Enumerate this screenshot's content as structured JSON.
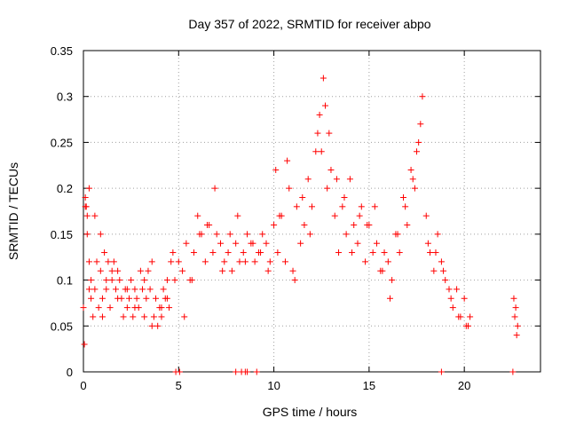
{
  "chart_data": {
    "type": "scatter",
    "title": "Day 357 of 2022, SRMTID for receiver abpo",
    "xlabel": "GPS time / hours",
    "ylabel": "SRMTID / TECUs",
    "xlim": [
      0,
      24
    ],
    "ylim": [
      0,
      0.35
    ],
    "xticks": [
      0,
      5,
      10,
      15,
      20
    ],
    "yticks": [
      0,
      0.05,
      0.1,
      0.15,
      0.2,
      0.25,
      0.3,
      0.35
    ],
    "xtick_labels": [
      "0",
      "5",
      "10",
      "15",
      "20"
    ],
    "ytick_labels": [
      "0",
      "0.05",
      "0.1",
      "0.15",
      "0.2",
      "0.25",
      "0.3",
      "0.35"
    ],
    "grid": true,
    "marker": "+",
    "series": [
      {
        "name": "SRMTID",
        "color": "#ff0000",
        "x": [
          0.0,
          0.1,
          0.1,
          0.2,
          0.2,
          0.3,
          0.3,
          0.4,
          0.4,
          0.5,
          0.6,
          0.7,
          0.8,
          0.9,
          1.0,
          1.0,
          1.1,
          1.2,
          1.3,
          1.4,
          1.5,
          1.6,
          1.7,
          1.8,
          1.9,
          2.0,
          2.1,
          2.2,
          2.3,
          2.4,
          2.5,
          2.6,
          2.7,
          2.8,
          2.9,
          3.0,
          3.1,
          3.2,
          3.3,
          3.4,
          3.5,
          3.6,
          3.7,
          3.8,
          3.9,
          4.0,
          4.1,
          4.2,
          4.3,
          4.4,
          4.5,
          4.6,
          4.7,
          4.8,
          5.0,
          5.2,
          5.4,
          5.6,
          5.8,
          6.0,
          6.2,
          6.4,
          6.6,
          6.8,
          7.0,
          7.2,
          7.4,
          7.6,
          7.8,
          8.0,
          8.2,
          8.4,
          8.6,
          8.8,
          9.0,
          9.2,
          9.4,
          9.6,
          9.8,
          10.0,
          10.1,
          10.2,
          10.4,
          10.6,
          10.8,
          11.0,
          11.2,
          11.4,
          11.6,
          11.8,
          12.0,
          12.2,
          12.3,
          12.4,
          12.6,
          12.7,
          12.8,
          13.0,
          13.2,
          13.4,
          13.6,
          13.8,
          14.0,
          14.2,
          14.4,
          14.6,
          14.8,
          15.0,
          15.2,
          15.4,
          15.6,
          15.8,
          16.0,
          16.2,
          16.4,
          16.6,
          16.8,
          17.0,
          17.2,
          17.4,
          17.6,
          17.7,
          17.8,
          18.0,
          18.2,
          18.4,
          18.6,
          18.8,
          19.0,
          19.2,
          19.4,
          19.6,
          19.8,
          20.0,
          20.2,
          20.3,
          22.6,
          22.7,
          22.8,
          0.05,
          0.15,
          0.3,
          0.6,
          0.9,
          1.2,
          1.5,
          1.8,
          2.3,
          2.7,
          3.2,
          3.6,
          4.1,
          4.4,
          5.3,
          5.7,
          6.1,
          6.5,
          6.9,
          7.3,
          7.7,
          8.1,
          8.5,
          8.9,
          9.3,
          9.7,
          10.3,
          10.7,
          11.1,
          11.5,
          11.9,
          12.5,
          12.9,
          13.3,
          13.7,
          14.1,
          14.5,
          14.9,
          15.3,
          15.7,
          16.1,
          16.5,
          16.9,
          17.3,
          17.5,
          18.1,
          18.5,
          18.9,
          19.3,
          19.7,
          20.1,
          22.65,
          22.75
        ],
        "y": [
          0.07,
          0.19,
          0.18,
          0.17,
          0.15,
          0.09,
          0.12,
          0.08,
          0.1,
          0.06,
          0.09,
          0.12,
          0.07,
          0.11,
          0.06,
          0.08,
          0.13,
          0.09,
          0.12,
          0.07,
          0.1,
          0.12,
          0.09,
          0.11,
          0.1,
          0.08,
          0.06,
          0.09,
          0.07,
          0.08,
          0.1,
          0.06,
          0.09,
          0.08,
          0.07,
          0.11,
          0.09,
          0.1,
          0.08,
          0.11,
          0.09,
          0.12,
          0.06,
          0.08,
          0.05,
          0.07,
          0.06,
          0.09,
          0.08,
          0.1,
          0.07,
          0.12,
          0.13,
          0.1,
          0.12,
          0.11,
          0.14,
          0.1,
          0.13,
          0.17,
          0.15,
          0.12,
          0.16,
          0.13,
          0.15,
          0.14,
          0.12,
          0.13,
          0.11,
          0.14,
          0.12,
          0.13,
          0.15,
          0.14,
          0.12,
          0.13,
          0.15,
          0.14,
          0.12,
          0.16,
          0.22,
          0.13,
          0.17,
          0.12,
          0.2,
          0.11,
          0.18,
          0.14,
          0.16,
          0.21,
          0.18,
          0.24,
          0.26,
          0.28,
          0.32,
          0.29,
          0.2,
          0.22,
          0.17,
          0.13,
          0.18,
          0.15,
          0.21,
          0.16,
          0.14,
          0.18,
          0.12,
          0.16,
          0.13,
          0.14,
          0.11,
          0.13,
          0.12,
          0.1,
          0.15,
          0.13,
          0.19,
          0.16,
          0.22,
          0.2,
          0.25,
          0.27,
          0.3,
          0.17,
          0.13,
          0.11,
          0.15,
          0.12,
          0.1,
          0.09,
          0.07,
          0.09,
          0.06,
          0.08,
          0.05,
          0.06,
          0.08,
          0.07,
          0.05,
          0.03,
          0.18,
          0.2,
          0.17,
          0.15,
          0.1,
          0.11,
          0.08,
          0.09,
          0.07,
          0.06,
          0.05,
          0.07,
          0.08,
          0.06,
          0.1,
          0.15,
          0.16,
          0.2,
          0.11,
          0.15,
          0.17,
          0.12,
          0.14,
          0.13,
          0.11,
          0.17,
          0.23,
          0.1,
          0.19,
          0.15,
          0.24,
          0.26,
          0.21,
          0.19,
          0.13,
          0.17,
          0.16,
          0.18,
          0.11,
          0.08,
          0.15,
          0.18,
          0.21,
          0.24,
          0.14,
          0.13,
          0.11,
          0.08,
          0.06,
          0.05,
          0.06,
          0.04
        ],
        "x_zero": [
          4.85,
          5.05,
          8.0,
          8.3,
          8.5,
          8.6,
          9.1,
          18.8,
          22.55
        ],
        "y_zero": [
          0,
          0,
          0,
          0,
          0,
          0,
          0,
          0,
          0
        ]
      }
    ]
  }
}
